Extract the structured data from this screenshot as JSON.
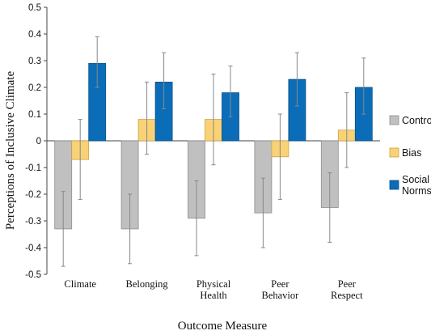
{
  "chart_data": {
    "type": "bar",
    "title": "",
    "xlabel": "Outcome Measure",
    "ylabel": "Perceptions of Inclusive Climate",
    "ylim": [
      -0.5,
      0.5
    ],
    "yticks": [
      "0.5",
      "0.4",
      "0.3",
      "0.2",
      "0.1",
      "0",
      "-0.1",
      "-0.2",
      "-0.3",
      "-0.4",
      "-0.5"
    ],
    "categories": [
      [
        "Climate"
      ],
      [
        "Belonging"
      ],
      [
        "Physical",
        "Health"
      ],
      [
        "Peer",
        "Behavior"
      ],
      [
        "Peer",
        "Respect"
      ]
    ],
    "series": [
      {
        "name": "Control",
        "color": "#c0c0c0",
        "stroke": "#8c8c8c",
        "values": [
          -0.33,
          -0.33,
          -0.29,
          -0.27,
          -0.25
        ],
        "error_low": [
          -0.47,
          -0.46,
          -0.43,
          -0.4,
          -0.38
        ],
        "error_high": [
          -0.19,
          -0.2,
          -0.15,
          -0.14,
          -0.12
        ]
      },
      {
        "name": "Bias",
        "color": "#fad276",
        "stroke": "#c9a24a",
        "values": [
          -0.07,
          0.08,
          0.08,
          -0.06,
          0.04
        ],
        "error_low": [
          -0.22,
          -0.05,
          -0.09,
          -0.22,
          -0.1
        ],
        "error_high": [
          0.08,
          0.22,
          0.25,
          0.1,
          0.18
        ]
      },
      {
        "name": "Social Norms",
        "legend_lines": [
          "Social",
          "Norms"
        ],
        "color": "#0b6db8",
        "stroke": "#074f87",
        "values": [
          0.29,
          0.22,
          0.18,
          0.23,
          0.2
        ],
        "error_low": [
          0.2,
          0.12,
          0.09,
          0.13,
          0.1
        ],
        "error_high": [
          0.39,
          0.33,
          0.28,
          0.33,
          0.31
        ]
      }
    ],
    "legend_position": "right",
    "grid": false
  }
}
